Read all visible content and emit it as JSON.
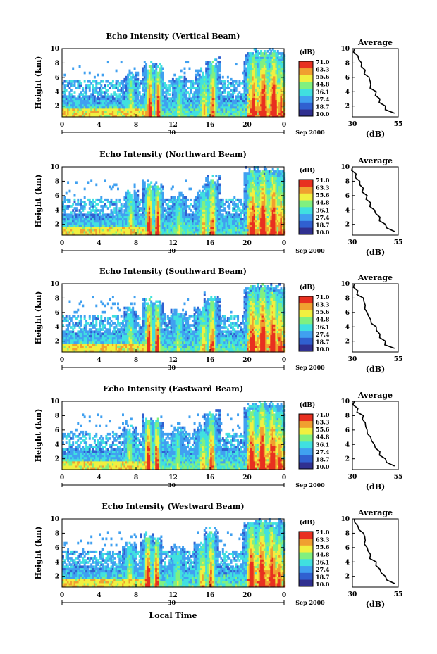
{
  "colorbar": {
    "unit_label": "(dB)",
    "ticks": [
      "71.0",
      "63.3",
      "55.6",
      "44.8",
      "36.1",
      "27.4",
      "18.7",
      "10.0"
    ],
    "stops": [
      "#303090",
      "#3060d0",
      "#40a0f0",
      "#40e0e0",
      "#80f080",
      "#f0f040",
      "#f0a030",
      "#e83020"
    ]
  },
  "date_label": "Sep 2000",
  "day_label": "30",
  "xlabel": "Local Time",
  "chart_data": [
    {
      "type": "heatmap",
      "title": "Echo Intensity (Vertical Beam)",
      "ylabel": "Height (km)",
      "x_ticks": [
        "0",
        "4",
        "8",
        "12",
        "16",
        "20",
        "0"
      ],
      "y_ticks": [
        "2",
        "4",
        "6",
        "8",
        "10"
      ],
      "xlim": [
        0,
        24
      ],
      "ylim": [
        0.5,
        10
      ],
      "average": {
        "title": "Average",
        "xlabel": "(dB)",
        "xlim": [
          30,
          55
        ],
        "x_ticks": [
          "30",
          "55"
        ],
        "y_ticks": [
          "2",
          "4",
          "6",
          "8",
          "10"
        ],
        "height_km": [
          10,
          9,
          8,
          7,
          6,
          5,
          4,
          3,
          2,
          1
        ],
        "db": [
          31,
          33,
          35,
          37,
          39,
          40,
          43,
          45,
          48,
          53
        ]
      }
    },
    {
      "type": "heatmap",
      "title": "Echo Intensity (Northward Beam)",
      "ylabel": "Height (km)",
      "x_ticks": [
        "0",
        "4",
        "8",
        "12",
        "16",
        "20",
        "0"
      ],
      "y_ticks": [
        "2",
        "4",
        "6",
        "8",
        "10"
      ],
      "xlim": [
        0,
        24
      ],
      "ylim": [
        0.5,
        10
      ],
      "average": {
        "title": "Average",
        "xlabel": "(dB)",
        "xlim": [
          30,
          55
        ],
        "x_ticks": [
          "30",
          "55"
        ],
        "y_ticks": [
          "2",
          "4",
          "6",
          "8",
          "10"
        ],
        "height_km": [
          10,
          9,
          8,
          7,
          6,
          5,
          4,
          3,
          2,
          1
        ],
        "db": [
          30,
          32,
          34,
          36,
          38,
          40,
          42,
          45,
          48,
          53
        ]
      }
    },
    {
      "type": "heatmap",
      "title": "Echo Intensity (Southward Beam)",
      "ylabel": "Height (km)",
      "x_ticks": [
        "0",
        "4",
        "8",
        "12",
        "16",
        "20",
        "0"
      ],
      "y_ticks": [
        "2",
        "4",
        "6",
        "8",
        "10"
      ],
      "xlim": [
        0,
        24
      ],
      "ylim": [
        0.5,
        10
      ],
      "average": {
        "title": "Average",
        "xlabel": "(dB)",
        "xlim": [
          30,
          55
        ],
        "x_ticks": [
          "30",
          "55"
        ],
        "y_ticks": [
          "2",
          "4",
          "6",
          "8",
          "10"
        ],
        "height_km": [
          10,
          9,
          8,
          7,
          6,
          5,
          4,
          3,
          2,
          1
        ],
        "db": [
          31,
          33,
          36,
          37,
          38,
          40,
          43,
          45,
          48,
          53
        ]
      }
    },
    {
      "type": "heatmap",
      "title": "Echo Intensity (Eastward Beam)",
      "ylabel": "Height (km)",
      "x_ticks": [
        "0",
        "4",
        "8",
        "12",
        "16",
        "20",
        "0"
      ],
      "y_ticks": [
        "2",
        "4",
        "6",
        "8",
        "10"
      ],
      "xlim": [
        0,
        24
      ],
      "ylim": [
        0.5,
        10
      ],
      "average": {
        "title": "Average",
        "xlabel": "(dB)",
        "xlim": [
          30,
          55
        ],
        "x_ticks": [
          "30",
          "55"
        ],
        "y_ticks": [
          "2",
          "4",
          "6",
          "8",
          "10"
        ],
        "height_km": [
          10,
          9,
          8,
          7,
          6,
          5,
          4,
          3,
          2,
          1
        ],
        "db": [
          31,
          33,
          36,
          37,
          38,
          40,
          42,
          45,
          48,
          53
        ]
      }
    },
    {
      "type": "heatmap",
      "title": "Echo Intensity (Westward Beam)",
      "ylabel": "Height (km)",
      "x_ticks": [
        "0",
        "4",
        "8",
        "12",
        "16",
        "20",
        "0"
      ],
      "y_ticks": [
        "2",
        "4",
        "6",
        "8",
        "10"
      ],
      "xlim": [
        0,
        24
      ],
      "ylim": [
        0.5,
        10
      ],
      "average": {
        "title": "Average",
        "xlabel": "(dB)",
        "xlim": [
          30,
          55
        ],
        "x_ticks": [
          "30",
          "55"
        ],
        "y_ticks": [
          "2",
          "4",
          "6",
          "8",
          "10"
        ],
        "height_km": [
          10,
          9,
          8,
          7,
          6,
          5,
          4,
          3,
          2,
          1
        ],
        "db": [
          31,
          33,
          36,
          37,
          38,
          40,
          43,
          45,
          48,
          53
        ]
      }
    }
  ]
}
